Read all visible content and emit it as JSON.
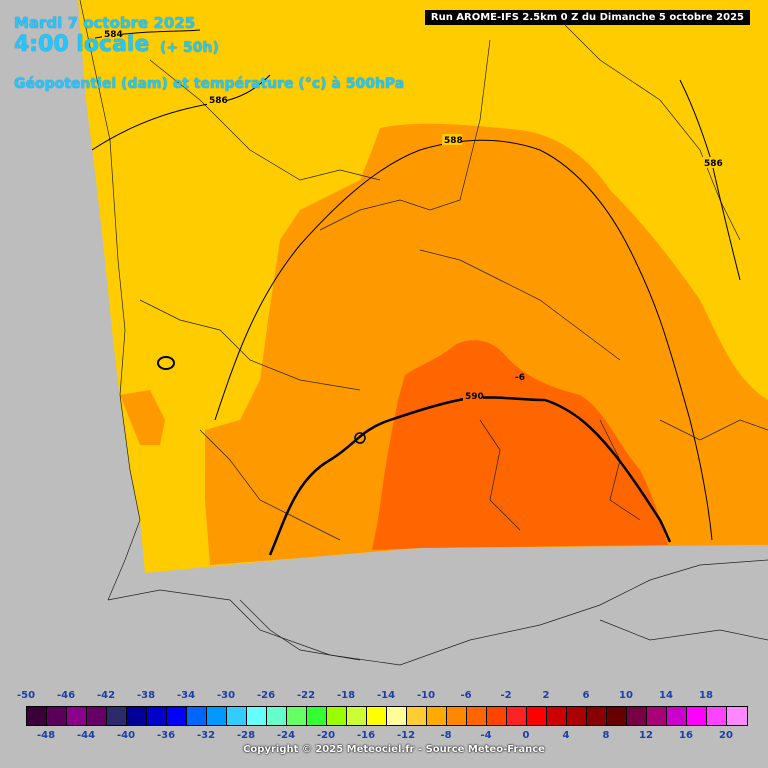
{
  "header": {
    "date": "Mardi 7 octobre 2025",
    "local_time": "4:00 locale",
    "lead_time": "(+ 50h)",
    "parameter": "Géopotentiel (dam) et température (°c) à 500hPa",
    "run_info": "Run AROME-IFS 2.5km 0 Z du Dimanche 5 octobre 2025"
  },
  "map": {
    "contour_labels": [
      {
        "id": "584",
        "text": "584"
      },
      {
        "id": "586-west",
        "text": "586"
      },
      {
        "id": "586-east",
        "text": "586"
      },
      {
        "id": "588",
        "text": "588"
      },
      {
        "id": "590",
        "text": "590"
      },
      {
        "id": "temp-minus6",
        "text": "-6"
      }
    ],
    "colors": {
      "background": "#bdbdbd",
      "temp_minus12_to_minus10": "#ffcc00",
      "temp_minus10_to_minus8": "#ff9900",
      "temp_minus8_to_minus6": "#ff6600",
      "isohypse": "#000000"
    }
  },
  "legend": {
    "top_ticks": [
      "-50",
      "-46",
      "-42",
      "-38",
      "-34",
      "-30",
      "-26",
      "-22",
      "-18",
      "-14",
      "-10",
      "-6",
      "-2",
      "2",
      "6",
      "10",
      "14",
      "18"
    ],
    "bottom_ticks": [
      "-48",
      "-44",
      "-40",
      "-36",
      "-32",
      "-28",
      "-24",
      "-20",
      "-16",
      "-12",
      "-8",
      "-4",
      "0",
      "4",
      "8",
      "12",
      "16",
      "20"
    ],
    "colors": [
      "#3a003a",
      "#5a005a",
      "#8a008a",
      "#660066",
      "#2b2b6b",
      "#000099",
      "#0000cc",
      "#0000ff",
      "#0066ff",
      "#0099ff",
      "#33ccff",
      "#66ffff",
      "#66ffcc",
      "#66ff66",
      "#33ff33",
      "#99ff00",
      "#ccff33",
      "#ffff00",
      "#ffff99",
      "#ffcc33",
      "#ffaa00",
      "#ff8800",
      "#ff6600",
      "#ff4400",
      "#ff2222",
      "#ff0000",
      "#cc0000",
      "#aa0000",
      "#880000",
      "#660000",
      "#770044",
      "#aa0077",
      "#cc00cc",
      "#ff00ff",
      "#ff44ff",
      "#ff88ff"
    ],
    "copyright": "Copyright © 2025 Meteociel.fr - Source Meteo-France"
  }
}
